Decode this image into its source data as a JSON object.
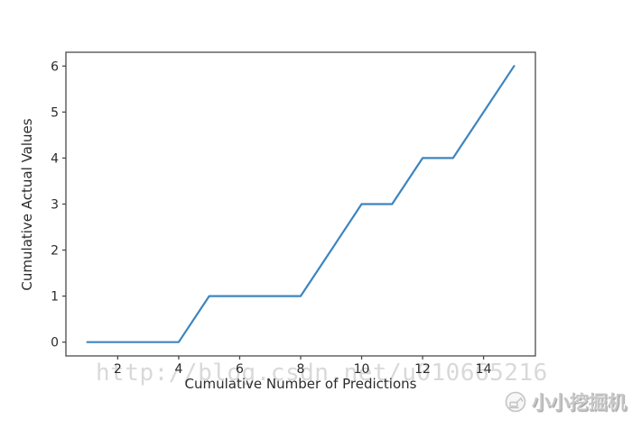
{
  "watermark": {
    "text": "http://blog.csdn.net/u010665216",
    "color": "#d9d9d9"
  },
  "branding": {
    "name": "小小挖掘机"
  },
  "chart_data": {
    "type": "line",
    "title": "",
    "xlabel": "Cumulative Number of Predictions",
    "ylabel": "Cumulative Actual Values",
    "x": [
      1,
      2,
      3,
      4,
      5,
      6,
      7,
      8,
      9,
      10,
      11,
      12,
      13,
      14,
      15
    ],
    "series": [
      {
        "name": "cumulative-actual-values",
        "values": [
          0,
          0,
          0,
          0,
          1,
          1,
          1,
          1,
          2,
          3,
          3,
          4,
          4,
          5,
          6
        ]
      }
    ],
    "xticks": [
      2,
      4,
      6,
      8,
      10,
      12,
      14
    ],
    "yticks": [
      0,
      1,
      2,
      3,
      4,
      5,
      6
    ],
    "xlim": [
      0.3,
      15.7
    ],
    "ylim": [
      -0.3,
      6.3
    ],
    "grid": false,
    "legend": "none",
    "line_color": "#3d85c0",
    "axis_color": "#4a4a4a",
    "tick_label_color": "#2b2b2b"
  }
}
